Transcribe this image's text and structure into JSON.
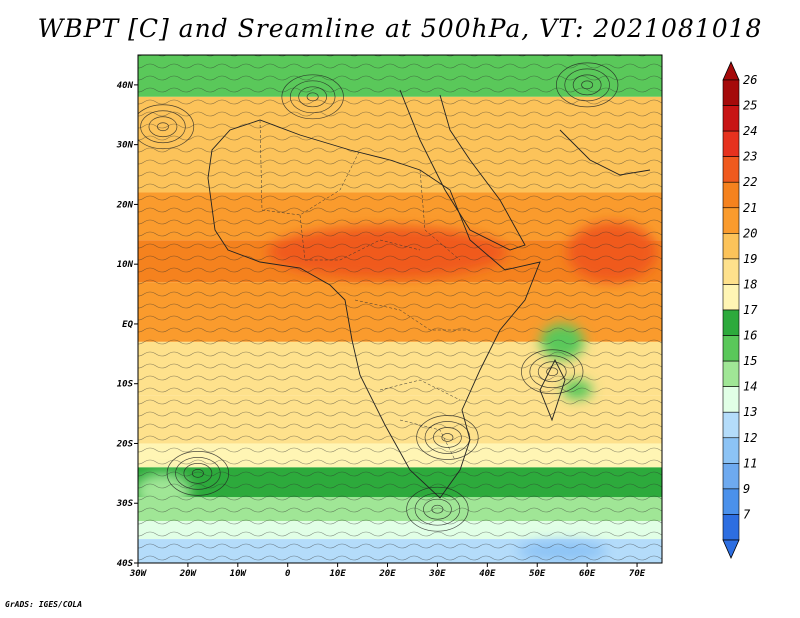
{
  "title": "WBPT [C] and Sreamline at 500hPa, VT: 2021081018",
  "credit": "GrADS: IGES/COLA",
  "map": {
    "lon_range": [
      -30,
      75
    ],
    "lat_range": [
      -40,
      45
    ],
    "lon_ticks": [
      {
        "value": -30,
        "label": "30W"
      },
      {
        "value": -20,
        "label": "20W"
      },
      {
        "value": -10,
        "label": "10W"
      },
      {
        "value": 0,
        "label": "0"
      },
      {
        "value": 10,
        "label": "10E"
      },
      {
        "value": 20,
        "label": "20E"
      },
      {
        "value": 30,
        "label": "30E"
      },
      {
        "value": 40,
        "label": "40E"
      },
      {
        "value": 50,
        "label": "50E"
      },
      {
        "value": 60,
        "label": "60E"
      },
      {
        "value": 70,
        "label": "70E"
      }
    ],
    "lat_ticks": [
      {
        "value": 40,
        "label": "40N"
      },
      {
        "value": 30,
        "label": "30N"
      },
      {
        "value": 20,
        "label": "20N"
      },
      {
        "value": 10,
        "label": "10N"
      },
      {
        "value": 0,
        "label": "EQ"
      },
      {
        "value": -10,
        "label": "10S"
      },
      {
        "value": -20,
        "label": "20S"
      },
      {
        "value": -30,
        "label": "30S"
      },
      {
        "value": -40,
        "label": "40S"
      }
    ]
  },
  "colorbar": {
    "levels": [
      {
        "label": "26",
        "color": "#a50a0a"
      },
      {
        "label": "25",
        "color": "#c81414"
      },
      {
        "label": "24",
        "color": "#e6321e"
      },
      {
        "label": "23",
        "color": "#f05a1e"
      },
      {
        "label": "22",
        "color": "#f5821e"
      },
      {
        "label": "21",
        "color": "#fa9b2d"
      },
      {
        "label": "20",
        "color": "#fcc35a"
      },
      {
        "label": "19",
        "color": "#fee18c"
      },
      {
        "label": "18",
        "color": "#fff5b4"
      },
      {
        "label": "17",
        "color": "#2daa3c"
      },
      {
        "label": "16",
        "color": "#5ac85a"
      },
      {
        "label": "15",
        "color": "#a0e696"
      },
      {
        "label": "14",
        "color": "#e1ffe6"
      },
      {
        "label": "13",
        "color": "#b4dcfa"
      },
      {
        "label": "12",
        "color": "#8cc3f5"
      },
      {
        "label": "11",
        "color": "#6eaaf0"
      },
      {
        "label": "9",
        "color": "#4b91eb"
      },
      {
        "label": "7",
        "color": "#2d6ee1"
      }
    ],
    "bottom_color": "#2d6ee1"
  },
  "fields": {
    "wbpt_bands": [
      {
        "from_lat": 45,
        "to_lat": 38,
        "value": 17.5,
        "color": "#5ac85a"
      },
      {
        "from_lat": 38,
        "to_lat": 22,
        "value": 20,
        "color": "#fcc35a"
      },
      {
        "from_lat": 22,
        "to_lat": 14,
        "value": 21,
        "color": "#fa9b2d"
      },
      {
        "from_lat": 14,
        "to_lat": 7,
        "value": 22,
        "color": "#f5821e"
      },
      {
        "from_lat": 7,
        "to_lat": -3,
        "value": 21,
        "color": "#fa9b2d"
      },
      {
        "from_lat": -3,
        "to_lat": -12,
        "value": 19.5,
        "color": "#fee18c"
      },
      {
        "from_lat": -12,
        "to_lat": -20,
        "value": 19,
        "color": "#fee18c"
      },
      {
        "from_lat": -20,
        "to_lat": -24,
        "value": 18.5,
        "color": "#fff5b4"
      },
      {
        "from_lat": -24,
        "to_lat": -29,
        "value": 17,
        "color": "#2daa3c"
      },
      {
        "from_lat": -29,
        "to_lat": -33,
        "value": 15.5,
        "color": "#a0e696"
      },
      {
        "from_lat": -33,
        "to_lat": -36,
        "value": 14.5,
        "color": "#e1ffe6"
      },
      {
        "from_lat": -36,
        "to_lat": -40,
        "value": 13,
        "color": "#b4dcfa"
      }
    ],
    "warm_core": {
      "lat": 12,
      "lon": 20,
      "value": 23,
      "color": "#f05a1e"
    },
    "green_patch_east": {
      "lat": -3,
      "lon": 55,
      "value": 16,
      "color": "#5ac85a"
    }
  }
}
